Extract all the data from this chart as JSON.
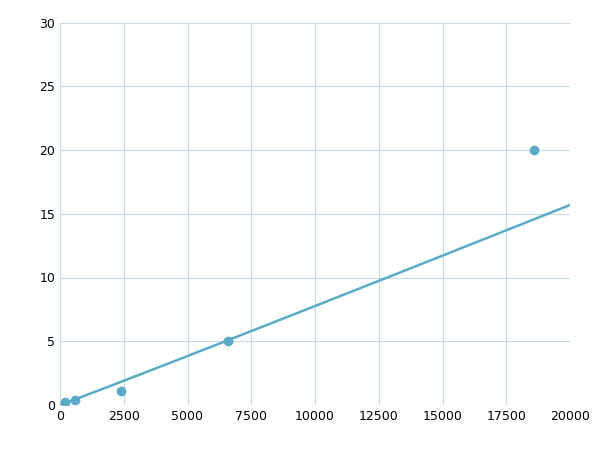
{
  "x": [
    200,
    600,
    2400,
    6600,
    18600
  ],
  "y": [
    0.2,
    0.4,
    1.1,
    5.0,
    20.0
  ],
  "line_color": "#5aaac8",
  "xlim": [
    0,
    20000
  ],
  "ylim": [
    0,
    30
  ],
  "xticks": [
    0,
    2500,
    5000,
    7500,
    10000,
    12500,
    15000,
    17500,
    20000
  ],
  "yticks": [
    0,
    5,
    10,
    15,
    20,
    25,
    30
  ],
  "grid_color": "#c8d8e8",
  "background_color": "#ffffff",
  "marker_size": 6,
  "line_width": 1.8
}
